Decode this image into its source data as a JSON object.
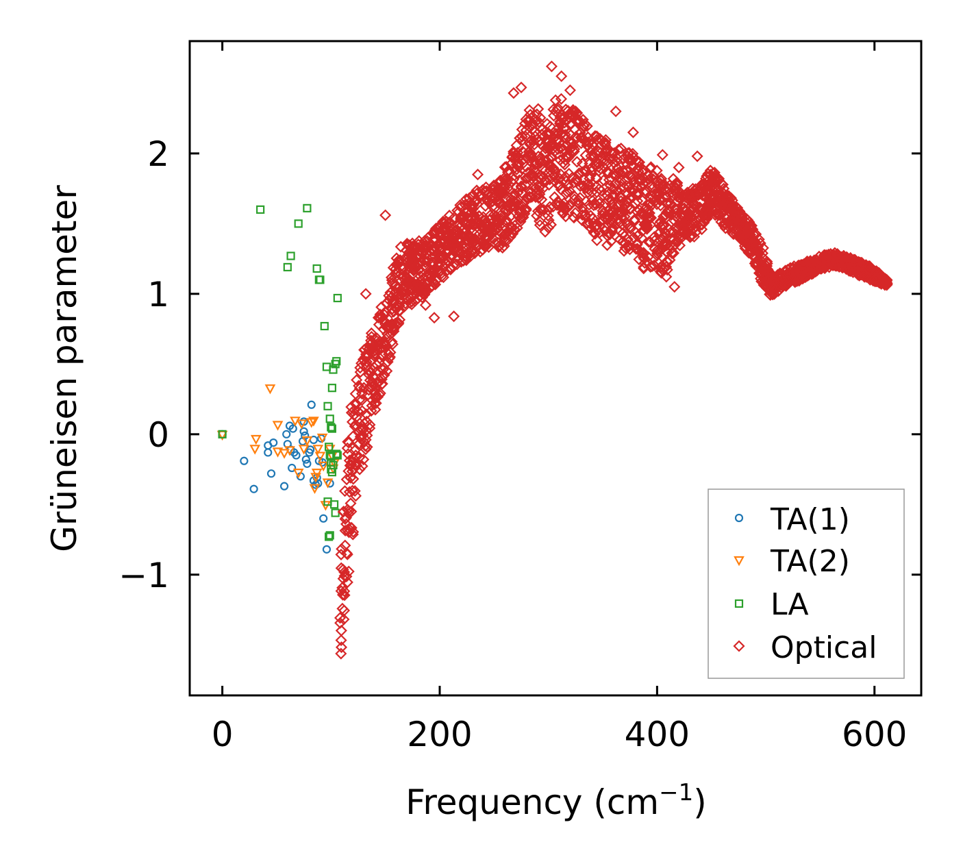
{
  "chart_data": {
    "type": "scatter",
    "title": "",
    "xlabel": "Frequency (cm",
    "xlabel_sup": "−1",
    "xlabel_close": ")",
    "ylabel": "Grüneisen parameter",
    "xlim": [
      -30,
      643
    ],
    "ylim": [
      -1.86,
      2.8
    ],
    "xticks": [
      0,
      200,
      400,
      600
    ],
    "xtick_labels": [
      "0",
      "200",
      "400",
      "600"
    ],
    "yticks": [
      -1,
      0,
      1,
      2
    ],
    "ytick_labels": [
      "−1",
      "0",
      "1",
      "2"
    ],
    "grid": false,
    "legend_position": "lower-right",
    "series": [
      {
        "name": "TA(1)",
        "marker": "circle",
        "color": "#1f77b4",
        "points": [
          [
            0,
            0
          ],
          [
            20,
            -0.19
          ],
          [
            29,
            -0.39
          ],
          [
            42,
            -0.08
          ],
          [
            42,
            -0.13
          ],
          [
            45,
            -0.28
          ],
          [
            47,
            -0.06
          ],
          [
            57,
            -0.37
          ],
          [
            59,
            0
          ],
          [
            60,
            -0.07
          ],
          [
            62,
            0.06
          ],
          [
            63,
            -0.11
          ],
          [
            64,
            -0.24
          ],
          [
            65,
            0.04
          ],
          [
            66,
            -0.13
          ],
          [
            72,
            -0.3
          ],
          [
            74,
            -0.05
          ],
          [
            75,
            0.02
          ],
          [
            75,
            0.09
          ],
          [
            77,
            -0.18
          ],
          [
            78,
            -0.21
          ],
          [
            80,
            -0.13
          ],
          [
            81,
            -0.11
          ],
          [
            82,
            0.21
          ],
          [
            84,
            -0.04
          ],
          [
            84,
            -0.33
          ],
          [
            86,
            -0.36
          ],
          [
            87,
            -0.31
          ],
          [
            88,
            -0.35
          ],
          [
            89,
            -0.19
          ],
          [
            91,
            -0.03
          ],
          [
            92,
            -0.2
          ],
          [
            93,
            -0.6
          ],
          [
            96,
            -0.82
          ],
          [
            99,
            -0.35
          ],
          [
            76,
            -0.01
          ],
          [
            68,
            -0.15
          ]
        ]
      },
      {
        "name": "TA(2)",
        "marker": "triangle-down",
        "color": "#ff7f0e",
        "points": [
          [
            0,
            0
          ],
          [
            31,
            -0.03
          ],
          [
            30,
            -0.1
          ],
          [
            44,
            0.33
          ],
          [
            51,
            0.07
          ],
          [
            51,
            -0.12
          ],
          [
            57,
            -0.13
          ],
          [
            62,
            -0.11
          ],
          [
            67,
            0.1
          ],
          [
            70,
            -0.27
          ],
          [
            73,
            0.08
          ],
          [
            75,
            -0.1
          ],
          [
            78,
            -0.04
          ],
          [
            82,
            0.09
          ],
          [
            85,
            -0.38
          ],
          [
            87,
            -0.27
          ],
          [
            88,
            -0.1
          ],
          [
            90,
            -0.15
          ],
          [
            92,
            -0.02
          ],
          [
            93,
            -0.22
          ],
          [
            95,
            -0.5
          ],
          [
            97,
            -0.34
          ],
          [
            99,
            -0.1
          ],
          [
            101,
            -0.15
          ],
          [
            102,
            -0.24
          ],
          [
            103,
            -0.2
          ],
          [
            84,
            0.1
          ],
          [
            86,
            -0.3
          ]
        ]
      },
      {
        "name": "LA",
        "marker": "square",
        "color": "#2ca02c",
        "points": [
          [
            0,
            0
          ],
          [
            35,
            1.6
          ],
          [
            60,
            1.19
          ],
          [
            63,
            1.27
          ],
          [
            70,
            1.5
          ],
          [
            78,
            1.61
          ],
          [
            87,
            1.18
          ],
          [
            89,
            1.1
          ],
          [
            90,
            1.1
          ],
          [
            94,
            0.77
          ],
          [
            96,
            0.48
          ],
          [
            97,
            0.2
          ],
          [
            99,
            0.11
          ],
          [
            100,
            0.05
          ],
          [
            101,
            0.33
          ],
          [
            102,
            0.46
          ],
          [
            104,
            0.5
          ],
          [
            105,
            0.52
          ],
          [
            106,
            0.97
          ],
          [
            98,
            -0.09
          ],
          [
            99,
            -0.15
          ],
          [
            100,
            -0.2
          ],
          [
            100,
            -0.25
          ],
          [
            101,
            -0.27
          ],
          [
            102,
            -0.22
          ],
          [
            103,
            -0.5
          ],
          [
            104,
            -0.56
          ],
          [
            105,
            -0.14
          ],
          [
            106,
            -0.15
          ],
          [
            97,
            -0.48
          ],
          [
            98,
            -0.73
          ],
          [
            99,
            -0.72
          ],
          [
            101,
            0.04
          ],
          [
            100,
            -0.16
          ]
        ]
      },
      {
        "name": "Optical",
        "marker": "diamond",
        "color": "#d62728",
        "profile": [
          [
            108,
            -1.65,
            0.55
          ],
          [
            110,
            -1.1,
            1.1
          ],
          [
            113,
            -0.75,
            1.0
          ],
          [
            118,
            -0.3,
            1.1
          ],
          [
            125,
            0.0,
            0.85
          ],
          [
            130,
            0.2,
            0.8
          ],
          [
            140,
            0.45,
            0.65
          ],
          [
            150,
            0.7,
            0.6
          ],
          [
            158,
            0.95,
            0.55
          ],
          [
            165,
            1.1,
            0.5
          ],
          [
            175,
            1.15,
            0.45
          ],
          [
            185,
            1.2,
            0.45
          ],
          [
            200,
            1.3,
            0.4
          ],
          [
            215,
            1.4,
            0.45
          ],
          [
            230,
            1.5,
            0.45
          ],
          [
            245,
            1.55,
            0.45
          ],
          [
            258,
            1.6,
            0.55
          ],
          [
            270,
            1.75,
            0.6
          ],
          [
            283,
            2.0,
            0.75
          ],
          [
            300,
            1.8,
            0.9
          ],
          [
            308,
            2.0,
            0.9
          ],
          [
            315,
            1.95,
            0.8
          ],
          [
            330,
            1.9,
            0.75
          ],
          [
            345,
            1.75,
            0.75
          ],
          [
            360,
            1.7,
            0.75
          ],
          [
            375,
            1.65,
            0.75
          ],
          [
            388,
            1.55,
            0.75
          ],
          [
            398,
            1.55,
            0.7
          ],
          [
            408,
            1.45,
            0.7
          ],
          [
            416,
            1.55,
            0.55
          ],
          [
            425,
            1.55,
            0.35
          ],
          [
            440,
            1.6,
            0.35
          ],
          [
            450,
            1.75,
            0.3
          ],
          [
            463,
            1.6,
            0.3
          ],
          [
            475,
            1.5,
            0.2
          ],
          [
            485,
            1.4,
            0.25
          ],
          [
            495,
            1.25,
            0.3
          ],
          [
            505,
            1.05,
            0.15
          ],
          [
            515,
            1.1,
            0.12
          ],
          [
            530,
            1.15,
            0.12
          ],
          [
            550,
            1.22,
            0.1
          ],
          [
            565,
            1.25,
            0.1
          ],
          [
            580,
            1.2,
            0.1
          ],
          [
            595,
            1.15,
            0.1
          ],
          [
            612,
            1.08,
            0.05
          ]
        ],
        "outliers": [
          [
            132,
            1.0
          ],
          [
            150,
            1.56
          ],
          [
            176,
            1.18
          ],
          [
            187,
            0.92
          ],
          [
            195,
            0.83
          ],
          [
            213,
            0.84
          ],
          [
            235,
            1.85
          ],
          [
            268,
            2.43
          ],
          [
            275,
            2.47
          ],
          [
            303,
            2.62
          ],
          [
            312,
            2.55
          ],
          [
            320,
            2.45
          ],
          [
            362,
            2.3
          ],
          [
            378,
            2.15
          ],
          [
            405,
            1.99
          ],
          [
            420,
            1.9
          ],
          [
            437,
            1.98
          ],
          [
            416,
            1.05
          ],
          [
            488,
            1.3
          ]
        ]
      }
    ]
  }
}
